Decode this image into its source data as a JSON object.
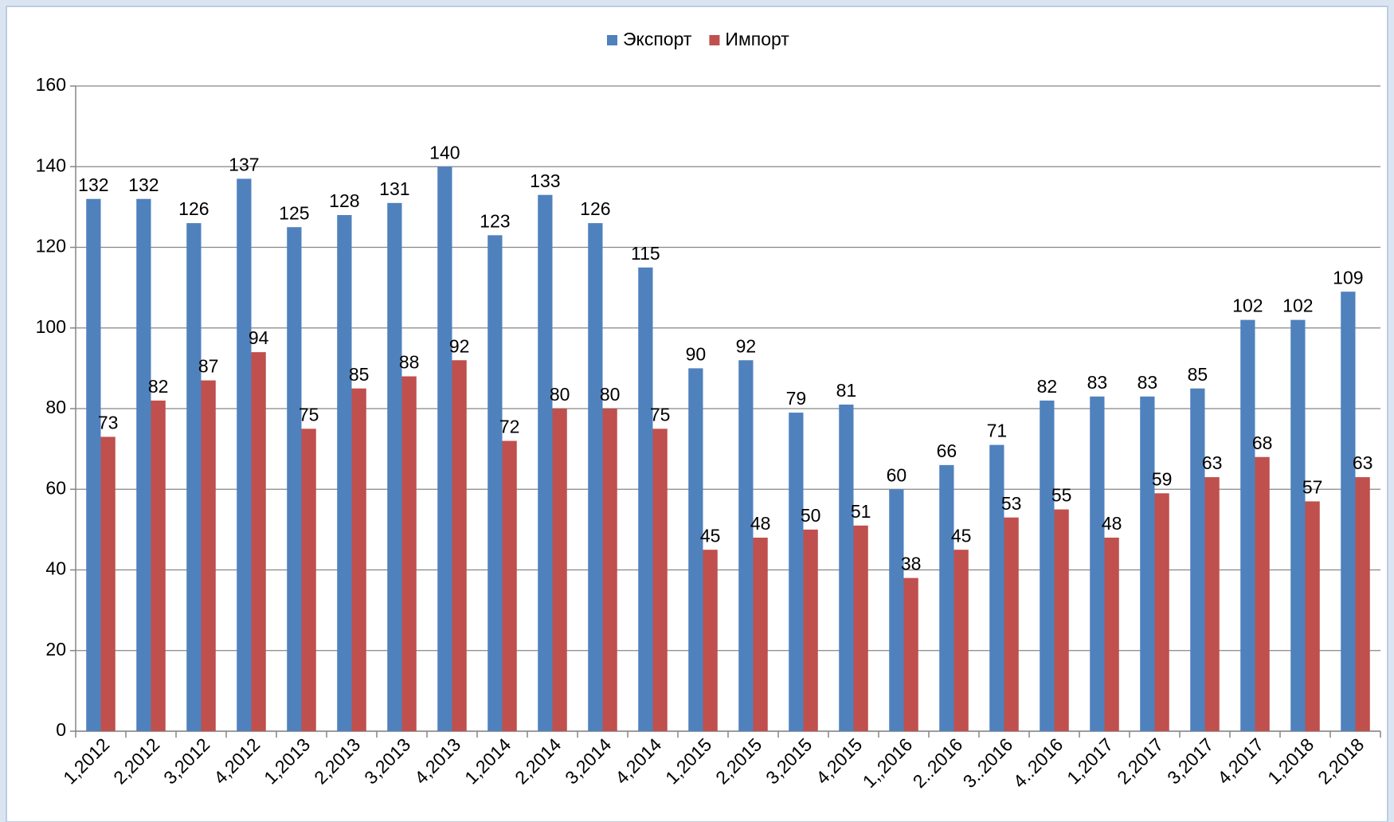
{
  "chart_data": {
    "type": "bar",
    "categories": [
      "1,2012",
      "2,2012",
      "3,2012",
      "4,2012",
      "1,2013",
      "2,2013",
      "3,2013",
      "4,2013",
      "1,2014",
      "2,2014",
      "3,2014",
      "4,2014",
      "1,2015",
      "2,2015",
      "3,2015",
      "4,2015",
      "1,,2016",
      "2..2016",
      "3..2016",
      "4..2016",
      "1,2017",
      "2,2017",
      "3,2017",
      "4,2017",
      "1,2018",
      "2,2018"
    ],
    "series": [
      {
        "name": "Экспорт",
        "color": "#4f81bd",
        "values": [
          132,
          132,
          126,
          137,
          125,
          128,
          131,
          140,
          123,
          133,
          126,
          115,
          90,
          92,
          79,
          81,
          60,
          66,
          71,
          82,
          83,
          83,
          85,
          102,
          102,
          109
        ]
      },
      {
        "name": "Импорт",
        "color": "#c0504d",
        "values": [
          73,
          82,
          87,
          94,
          75,
          85,
          88,
          92,
          72,
          80,
          80,
          75,
          45,
          48,
          50,
          51,
          38,
          45,
          53,
          55,
          48,
          59,
          63,
          68,
          57,
          63
        ]
      }
    ],
    "ylim": [
      0,
      160
    ],
    "yticks": [
      0,
      20,
      40,
      60,
      80,
      100,
      120,
      140,
      160
    ],
    "grid": true,
    "legend": "top"
  }
}
